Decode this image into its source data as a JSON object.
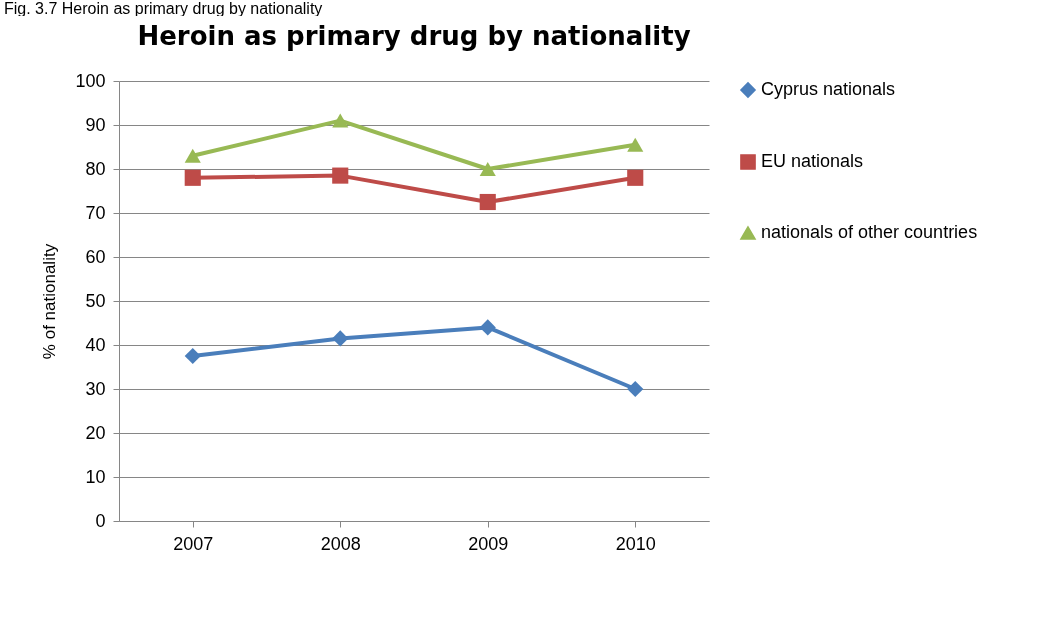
{
  "chart_data": {
    "type": "line",
    "title": "Heroin as primary drug by nationality",
    "annotations": [
      "Fig. 3.7 Heroin as primary drug by nationality"
    ],
    "ylabel": "% of nationality",
    "categories": [
      "2007",
      "2008",
      "2009",
      "2010"
    ],
    "series": [
      {
        "name": "Cyprus nationals",
        "color": "#4a7ebb",
        "marker": "diamond",
        "values": [
          37.5,
          41.5,
          44,
          30
        ]
      },
      {
        "name": "EU nationals",
        "color": "#be4b48",
        "marker": "square",
        "values": [
          78,
          78.5,
          72.5,
          78
        ]
      },
      {
        "name": "nationals of other countries",
        "color": "#98b954",
        "marker": "triangle",
        "values": [
          83,
          91,
          80,
          85.5
        ]
      }
    ],
    "ylim": [
      0,
      100
    ],
    "yticks": [
      0,
      10,
      20,
      30,
      40,
      50,
      60,
      70,
      80,
      90,
      100
    ],
    "grid": "y",
    "legend": "right",
    "line_style": "solid"
  }
}
